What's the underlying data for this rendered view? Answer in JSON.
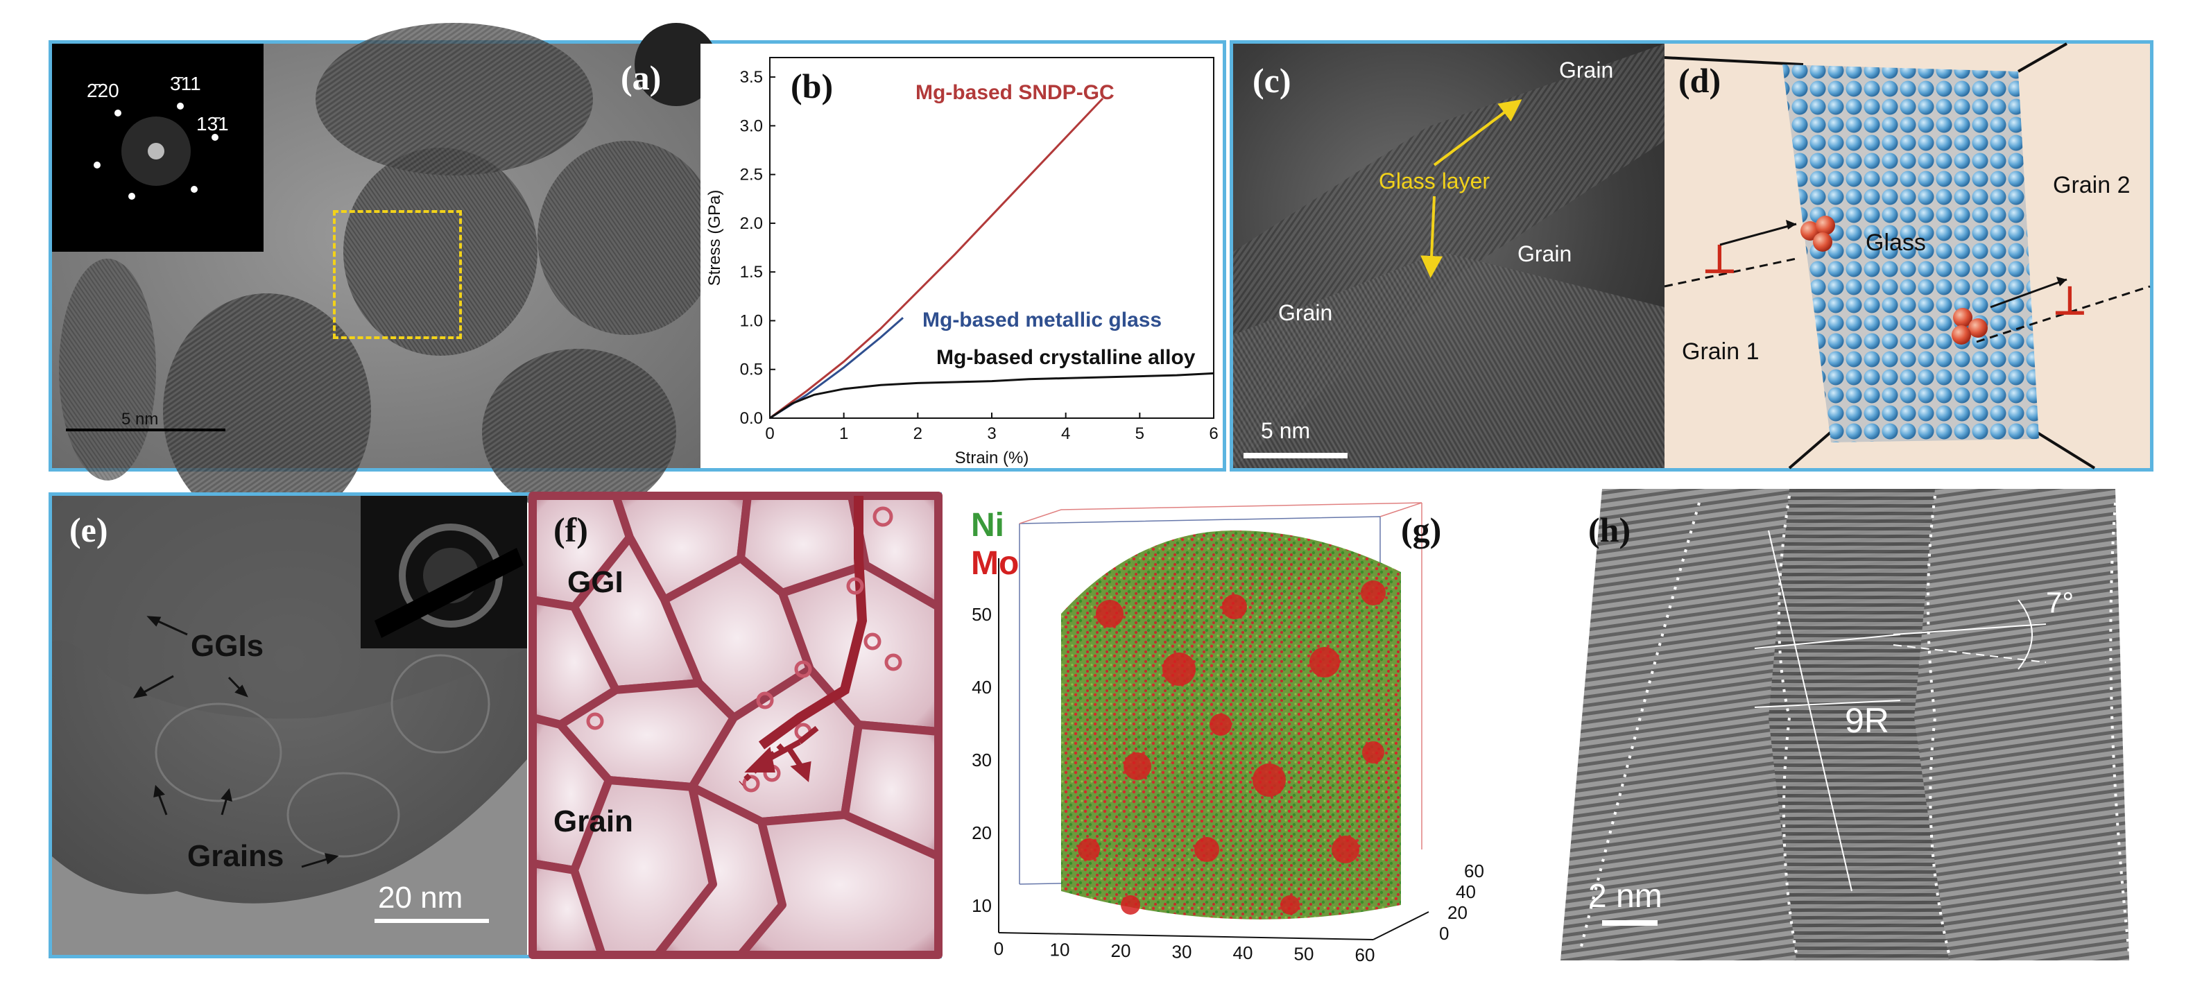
{
  "panels": {
    "a": {
      "label": "(a)",
      "scale_bar": "5 nm",
      "fft_indices": [
        "2̄20",
        "3̄11",
        "13̄1"
      ]
    },
    "b": {
      "label": "(b)"
    },
    "c": {
      "label": "(c)",
      "glass_layer": "Glass layer",
      "grain_top": "Grain",
      "grain_mid": "Grain",
      "grain_left": "Grain",
      "scale_bar": "5 nm"
    },
    "d": {
      "label": "(d)",
      "glass": "Glass",
      "grain1": "Grain 1",
      "grain2": "Grain 2"
    },
    "e": {
      "label": "(e)",
      "ggis": "GGIs",
      "grains": "Grains",
      "scale_bar": "20 nm"
    },
    "f": {
      "label": "(f)",
      "ggi": "GGI",
      "grain": "Grain"
    },
    "g": {
      "label": "(g)",
      "ni": "Ni",
      "mo": "Mo",
      "z_ticks": [
        "10",
        "20",
        "30",
        "40",
        "50"
      ],
      "x_ticks": [
        "0",
        "10",
        "20",
        "30",
        "40",
        "50",
        "60"
      ],
      "y_ticks": [
        "0",
        "20",
        "40",
        "60"
      ]
    },
    "h": {
      "label": "(h)",
      "structure": "9R",
      "angle": "7°",
      "scale_bar": "2 nm"
    }
  },
  "chart_data": {
    "type": "line",
    "xlabel": "Strain (%)",
    "ylabel": "Stress (GPa)",
    "xlim": [
      0,
      6
    ],
    "ylim": [
      0,
      3.7
    ],
    "x_ticks": [
      "0",
      "1",
      "2",
      "3",
      "4",
      "5",
      "6"
    ],
    "y_ticks": [
      "0.0",
      "0.5",
      "1.0",
      "1.5",
      "2.0",
      "2.5",
      "3.0",
      "3.5"
    ],
    "series": [
      {
        "name": "Mg-based SNDP-GC",
        "color": "#b23a3a",
        "x": [
          0,
          0.5,
          1.0,
          1.5,
          2.0,
          2.5,
          3.0,
          3.5,
          4.0,
          4.5
        ],
        "y": [
          0,
          0.28,
          0.58,
          0.92,
          1.3,
          1.68,
          2.08,
          2.48,
          2.88,
          3.28
        ]
      },
      {
        "name": "Mg-based metallic glass",
        "color": "#2f4f8f",
        "x": [
          0,
          0.5,
          1.0,
          1.5,
          1.8
        ],
        "y": [
          0,
          0.24,
          0.52,
          0.83,
          1.03
        ]
      },
      {
        "name": "Mg-based crystalline alloy",
        "color": "#111111",
        "x": [
          0,
          0.3,
          0.6,
          1.0,
          1.5,
          2.0,
          2.5,
          3.0,
          3.5,
          4.0,
          4.5,
          5.0,
          5.5,
          6.0
        ],
        "y": [
          0,
          0.15,
          0.24,
          0.3,
          0.34,
          0.36,
          0.37,
          0.38,
          0.4,
          0.41,
          0.42,
          0.43,
          0.44,
          0.46
        ]
      }
    ]
  }
}
